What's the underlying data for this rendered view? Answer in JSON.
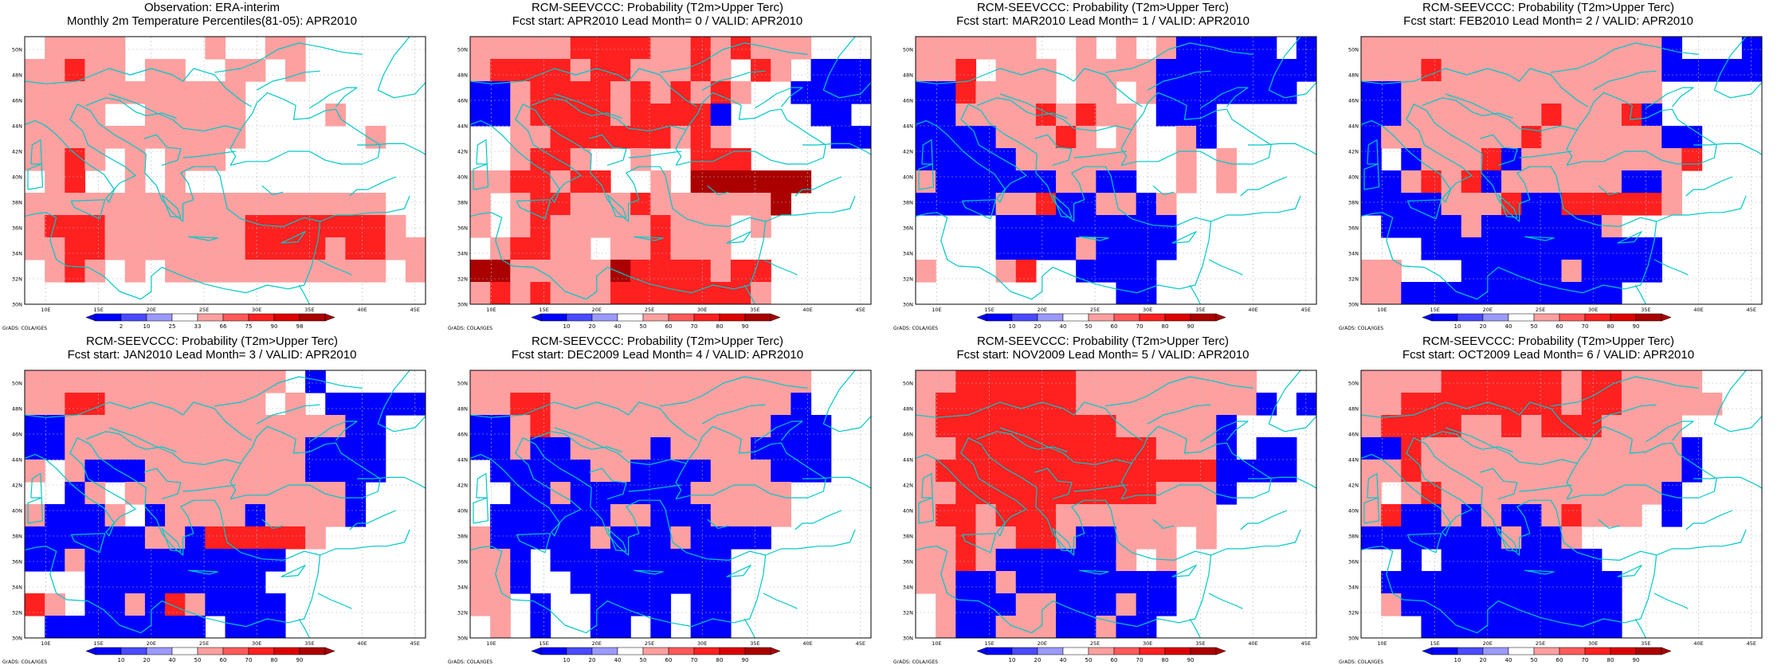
{
  "figure": {
    "credit": "GrADS: COLA/IGES",
    "colors": {
      "blue_dark": "#0000ff",
      "blue_mid": "#4a4aff",
      "blue_light": "#9a9aff",
      "white": "#ffffff",
      "red_light": "#ffa0a0",
      "red_mid": "#ff5a5a",
      "red_strong": "#ff2020",
      "red_dark": "#dd0000",
      "red_deep": "#aa0000",
      "coast": "#00c8c8",
      "grid": "#b8b8b8"
    },
    "lon_ticks": [
      "10E",
      "15E",
      "20E",
      "25E",
      "30E",
      "35E",
      "40E",
      "45E"
    ],
    "lat_ticks": [
      "50N",
      "48N",
      "46N",
      "44N",
      "42N",
      "40N",
      "38N",
      "36N",
      "34N",
      "32N",
      "30N"
    ]
  },
  "panels": [
    {
      "title1": "Observation: ERA-interim",
      "title2": "Monthly 2m Temperature Percentiles(81-05): APR2010",
      "colorbar_labels": [
        "2",
        "10",
        "25",
        "33",
        "66",
        "75",
        "90",
        "98"
      ],
      "grid": [
        "xggggxxxxgxxggxxxxxx",
        "ggrggxggxxggxgxxxxxx",
        "gggggggggggxxxxxxxxx",
        "ggggxxgggggxxxxgxxxx",
        "gggggggggggxxxxxxgxx",
        "ggrgxgxgggxxxxxxxxxx",
        "xgrxxgxgxxxxxxxxxxxx",
        "ggggggggggggggggggxx",
        "grrrgggggggrrrrrrrgx",
        "ggrrgggggggrrrrgrrgg",
        "xgrgxgxgggggggggggxg",
        "xxxxxxxxxxxxxxxxxxxx"
      ]
    },
    {
      "title1": "RCM-SEEVCCC: Probability (T2m>Upper Terc)",
      "title2": "Fcst start: APR2010  Lead Month= 0 / VALID: APR2010",
      "colorbar_labels": [
        "10",
        "20",
        "40",
        "50",
        "60",
        "70",
        "80",
        "90"
      ],
      "grid": [
        "gggggrrrrggrgrgggxxx",
        "grrrrgrrgggrgxrgxbbb",
        "bbgrrrrgrgrgrgxxbbbb",
        "bbgrrrrgrrrrbxxxxbbx",
        "xxggrrrrrrgrgxxxxxbb",
        "xxgrrgxxgxxrrrxxxxxx",
        "ggrrgrrxxgxddddddxxx",
        "gxgrrgggrggggggdxxxx",
        "gxgrgggggrgggxgxxxxx",
        "xgrrggxggrgggxxxxxxx",
        "ddgggggdrrrrgrrxxxxx",
        "grgrgggrrrrrrrgxxxxx"
      ]
    },
    {
      "title1": "RCM-SEEVCCC: Probability (T2m>Upper Terc)",
      "title2": "Fcst start: MAR2010  Lead Month= 1 / VALID: APR2010",
      "colorbar_labels": [
        "10",
        "20",
        "40",
        "50",
        "60",
        "70",
        "80",
        "90"
      ],
      "grid": [
        "ggggggxxgxgxgbbbbbxb",
        "ggrxgggxggggbbbbbbbb",
        "bbrggggxggxgbbbbbbbx",
        "bbggggrgrggxbbbxxxxx",
        "bbbbgggrgxgxxgbxxxxx",
        "bbbbbggggggxxgxgxxxx",
        "gbbbbbbggbbxxgxgxxxx",
        "bbbbggrbbggbgxxxxxxx",
        "xxxxbbbbbbbbbxxxxxxx",
        "xxxxbbbbgbbbbxxxxxxx",
        "gxxxgrxxbbbbxxxxxxxx",
        "xxxxxxxxxxbbxxxxxxxx"
      ]
    },
    {
      "title1": "RCM-SEEVCCC: Probability (T2m>Upper Terc)",
      "title2": "Fcst start: FEB2010  Lead Month= 2 / VALID: APR2010",
      "colorbar_labels": [
        "10",
        "20",
        "40",
        "50",
        "60",
        "70",
        "80",
        "90"
      ],
      "grid": [
        "gggggggggggggggbxxxb",
        "gggrgggggggggggbbbbb",
        "bbgggggggggggggxxxxx",
        "bbgggggggrgggrbxxxxx",
        "bgggggggrggggggbbxxx",
        "bxbgggrbggggggggrxxx",
        "bbgrgrbggggggbbgxxxx",
        "bbbbgggrbbrrrrrgxxxx",
        "xbbbbgbbbbbbgxxxxxxx",
        "xxxbbbbbbbbbbbbxxxxx",
        "ggxxxbbbbbgbbbbxxxxx",
        "ggbbbbbbbbbbbxxxxxxx"
      ]
    },
    {
      "title1": "RCM-SEEVCCC: Probability (T2m>Upper Terc)",
      "title2": "Fcst start: JAN2010  Lead Month= 3 / VALID: APR2010",
      "colorbar_labels": [
        "10",
        "20",
        "40",
        "50",
        "60",
        "70",
        "80",
        "90"
      ],
      "grid": [
        "gggggggggggggxbxxxxx",
        "ggrrggggggggxgxbbbbb",
        "bbggggggggggggggbbxx",
        "bbggggggggggggbbbbxx",
        "gxgbbbggggggggbbbbxx",
        "xxbgxgggggggggggbxxx",
        "gbbbgxbggggbggggbxxx",
        "bbbbbbggbrrrrrgxxxxx",
        "bbgbbbbbbbbbbxxxxxxx",
        "xxxbbbbbbbbbxxxxxxxx",
        "rgxbbgbrgbbbbxxxxxxx",
        "xbbbbbbbbxbbbxxxxxxx"
      ]
    },
    {
      "title1": "RCM-SEEVCCC: Probability (T2m>Upper Terc)",
      "title2": "Fcst start: DEC2009  Lead Month= 4 / VALID: APR2010",
      "colorbar_labels": [
        "10",
        "20",
        "40",
        "50",
        "60",
        "70",
        "80",
        "90"
      ],
      "grid": [
        "gggggggggggggggggxxx",
        "ggrrggggggggggggbxxx",
        "bbgrgggggggggggbbbxx",
        "bbgbbggggbggggbbbbxx",
        "xbbbbbggbbbbgggbbbxx",
        "xxbbgbbbbbbgggggxxxx",
        "xbbbbbbggbbbggggxxxx",
        "gbbbbbgbbbgbbbbxxxxx",
        "ggbxbbbbbbbbbxxxxxxx",
        "ggbxxbbbbbbbbxxxxxxx",
        "ggxbxxbbbbxbbxxxxxxx",
        "xgxbxxbbxbxbbxxxxxxx"
      ]
    },
    {
      "title1": "RCM-SEEVCCC: Probability (T2m>Upper Terc)",
      "title2": "Fcst start: NOV2009  Lead Month= 5 / VALID: APR2010",
      "colorbar_labels": [
        "10",
        "20",
        "40",
        "50",
        "60",
        "70",
        "80",
        "90"
      ],
      "grid": [
        "ggrrrrrrgggggggggxxx",
        "grrrrrrrgggggggggbxb",
        "grrrrrrrrrgggggbxxxx",
        "ggrrrrrrrrrrgggbxbbx",
        "grrrrrrrrrrrrrrbbbbx",
        "ggrrrrrrrrrrgggbxxxx",
        "grrgrrrggggggggxxxxx",
        "ggrggrrgbbgggxgxxxxx",
        "ggrgbbbbbbgxgxxxxxxx",
        "ggbbgbbbbbbbbxxxxxxx",
        "xgbbbggbbbgbbxxxxxxx",
        "xgbbgggbbgbbxxxxxxxx"
      ]
    },
    {
      "title1": "RCM-SEEVCCC: Probability (T2m>Upper Terc)",
      "title2": "Fcst start: OCT2009  Lead Month= 6 / VALID: APR2010",
      "colorbar_labels": [
        "10",
        "20",
        "40",
        "50",
        "60",
        "70",
        "80",
        "90"
      ],
      "grid": [
        "ggggrrrrrrgrrggggxxx",
        "ggrrrrrrrrgrrgggggxx",
        "grrrrggrgrrrggggxxxx",
        "bbrgggggggggggggbxxx",
        "ggrgggggggggggggbxxx",
        "gxgrgggggggggggbxxxx",
        "grbbgbgbbgrgggxbxxxx",
        "bbbbbbbgbbgxxxxxxxxx",
        "xxbxbbbbbbbbxxxxxxxx",
        "xbbbbbbbbbbbbxxxxxxx",
        "xgbbbbbbbbbbbxxxxxxx",
        "xxxbbbbbbbbbbxxxxxxx"
      ]
    }
  ]
}
